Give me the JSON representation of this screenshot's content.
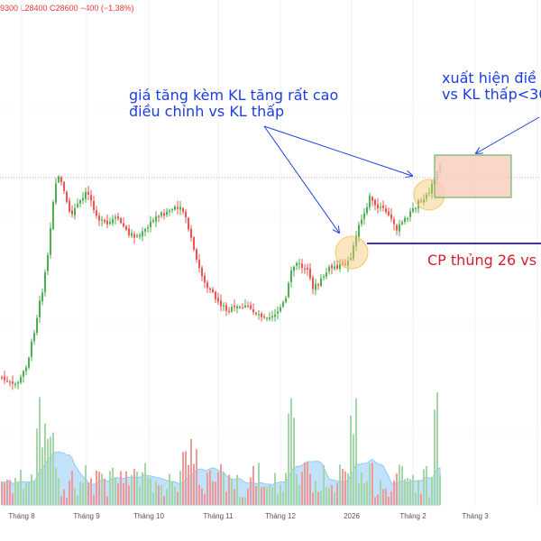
{
  "ohlc": {
    "text": "9300 L28400 C28600 −400 (−1.38%)"
  },
  "annotations": {
    "vol_line1": "giá tăng kèm KL tăng rất cao",
    "vol_line2": "điều chỉnh vs KL thấp",
    "top_line1": "xuất hiện điề",
    "top_line2": "vs KL thấp<30",
    "support": "CP thủng 26 vs"
  },
  "colors": {
    "up": "#4caf50",
    "down": "#ef5350",
    "vol_up": "#a5d6a7",
    "vol_down": "#ef9a9a",
    "vol_ma": "#90caf9",
    "annotation_blue": "#1e3de0",
    "annotation_red": "#d3202a",
    "zone_fill": "#f8cbbd",
    "zone_border": "#4caf50",
    "highlight_circle": "#f7c771",
    "support_line": "#3f33b8"
  },
  "chart_data": {
    "type": "candlestick",
    "x_ticks": [
      "Tháng 8",
      "Tháng 9",
      "Tháng 10",
      "Tháng 11",
      "Tháng 12",
      "2026",
      "Tháng 2",
      "Tháng 3"
    ],
    "last_bar": {
      "low": 28400,
      "close": 28600,
      "change": -400,
      "change_pct": -1.38
    },
    "support_level_label": "26",
    "grid": true,
    "legend": "none"
  }
}
